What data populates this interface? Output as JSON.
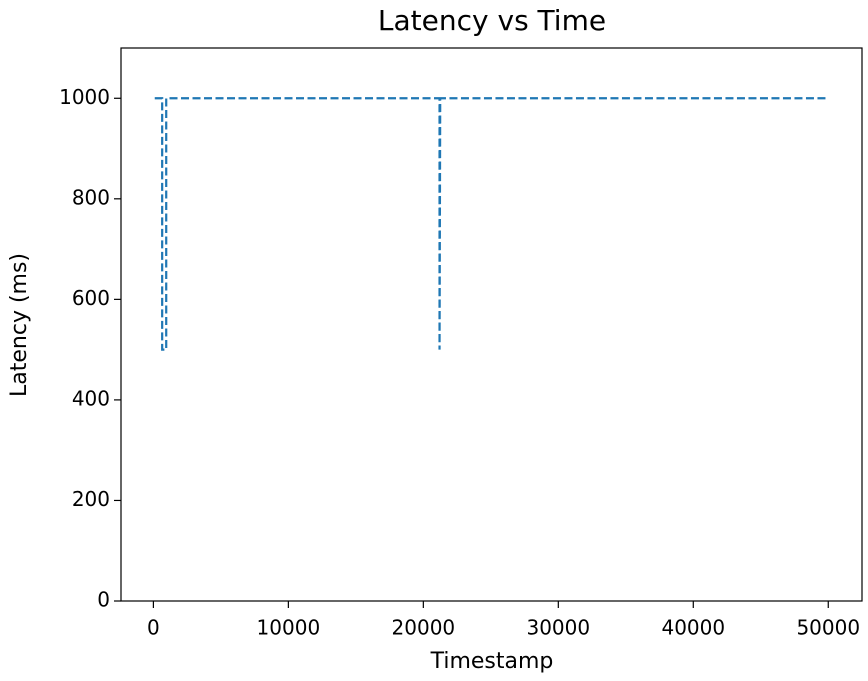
{
  "chart_data": {
    "type": "line",
    "title": "Latency vs Time",
    "x_label": "Timestamp",
    "y_label": "Latency (ms)",
    "x": [
      100,
      650,
      650,
      950,
      950,
      21200,
      21200,
      21250,
      50000
    ],
    "series": [
      {
        "name": "Latency",
        "color": "#1f77b4",
        "dashed": true,
        "values": [
          1000,
          1000,
          500,
          500,
          1000,
          1000,
          500,
          1000,
          1000
        ]
      }
    ],
    "xlim": [
      -2400,
      52500
    ],
    "ylim": [
      0,
      1100
    ],
    "xticks": [
      0,
      10000,
      20000,
      30000,
      40000,
      50000
    ],
    "yticks": [
      0,
      200,
      400,
      600,
      800,
      1000
    ],
    "grid": false
  }
}
